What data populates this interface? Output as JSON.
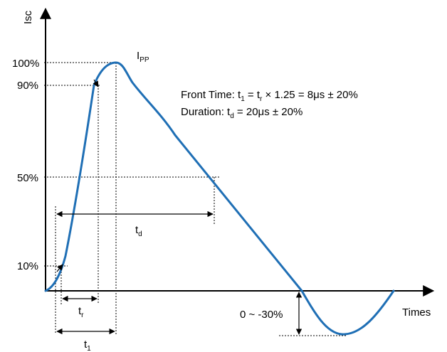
{
  "diagram": {
    "y_axis_label": "Isc",
    "x_axis_label": "Times",
    "y_levels": [
      "100%",
      "90%",
      "50%",
      "10%"
    ],
    "peak_label": {
      "main": "I",
      "sub": "PP"
    },
    "front_time": {
      "prefix": "Front Time: t",
      "sub1": "1",
      "mid": " = t",
      "sub2": "r",
      "suffix": " × 1.25 = 8μs ±  20%"
    },
    "duration": {
      "prefix": "Duration: t",
      "sub": "d",
      "suffix": " = 20μs ±  20%"
    },
    "dim_labels": {
      "td": {
        "main": "t",
        "sub": "d"
      },
      "tr": {
        "main": "t",
        "sub": "r"
      },
      "t1": {
        "main": "t",
        "sub": "1"
      }
    },
    "undershoot_label": "0 ~ -30%",
    "colors": {
      "waveform": "#1f6fb5",
      "lines": "#000000"
    }
  }
}
